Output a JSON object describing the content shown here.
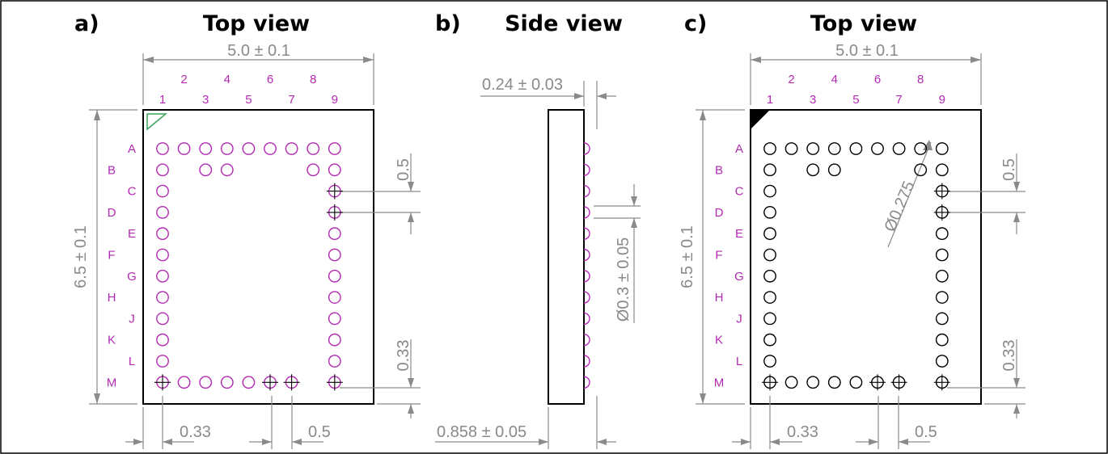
{
  "colors": {
    "panel_a_pins": "#b22ab2",
    "panel_c_pins": "#000000",
    "dimension": "#8a8a8a",
    "pin1_marker_a": "#3aa35a",
    "outline": "#000000"
  },
  "panels": [
    {
      "id": "a",
      "letter": "a)",
      "title": "Top view",
      "width_dim": "5.0 ± 0.1",
      "height_dim": "6.5 ± 0.1",
      "pitch_dim": "0.5",
      "edge_dim": "0.33",
      "bottom_edge_dim": "0.33",
      "bottom_pitch_dim": "0.5",
      "column_labels": [
        "1",
        "2",
        "3",
        "4",
        "5",
        "6",
        "7",
        "8",
        "9"
      ],
      "row_labels": [
        "A",
        "B",
        "C",
        "D",
        "E",
        "F",
        "G",
        "H",
        "J",
        "K",
        "L",
        "M"
      ]
    },
    {
      "id": "b",
      "letter": "b)",
      "title": "Side view",
      "top_dim": "0.24 ± 0.03",
      "ball_dim": "Ø0.3 ± 0.05",
      "bottom_dim": "0.858 ± 0.05"
    },
    {
      "id": "c",
      "letter": "c)",
      "title": "Top view",
      "width_dim": "5.0 ± 0.1",
      "height_dim": "6.5 ± 0.1",
      "pitch_dim": "0.5",
      "edge_dim": "0.33",
      "bottom_edge_dim": "0.33",
      "bottom_pitch_dim": "0.5",
      "pad_dim": "Ø0.275",
      "column_labels": [
        "1",
        "2",
        "3",
        "4",
        "5",
        "6",
        "7",
        "8",
        "9"
      ],
      "row_labels": [
        "A",
        "B",
        "C",
        "D",
        "E",
        "F",
        "G",
        "H",
        "J",
        "K",
        "L",
        "M"
      ]
    }
  ]
}
